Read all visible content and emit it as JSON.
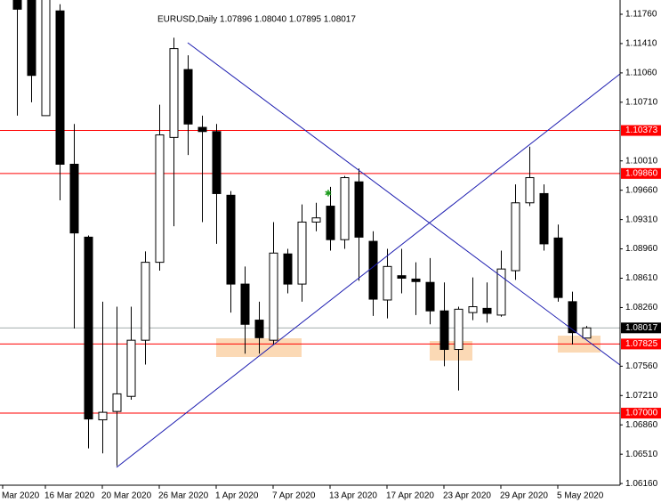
{
  "chart_data": {
    "type": "candlestick",
    "title": "EURUSD,Daily  1.07896 1.08040 1.07895 1.08017",
    "categories": [
      "Mar 2020",
      null,
      null,
      "16 Mar 2020",
      null,
      null,
      null,
      "20 Mar 2020",
      null,
      null,
      null,
      "26 Mar 2020",
      null,
      null,
      null,
      "1 Apr 2020",
      null,
      null,
      null,
      "7 Apr 2020",
      null,
      null,
      null,
      "13 Apr 2020",
      null,
      null,
      null,
      "17 Apr 2020",
      null,
      null,
      null,
      "23 Apr 2020",
      null,
      null,
      null,
      "29 Apr 2020",
      null,
      null,
      null,
      "5 May 2020",
      null,
      null
    ],
    "open": [
      null,
      1.1209,
      1.1195,
      1.1055,
      1.118,
      1.0997,
      1.091,
      1.0692,
      1.0702,
      1.072,
      1.0787,
      1.088,
      1.1029,
      1.111,
      1.1041,
      1.1036,
      1.096,
      1.0854,
      1.0811,
      1.0787,
      1.089,
      1.0854,
      1.0928,
      1.0947,
      1.0907,
      1.0976,
      1.0905,
      1.0835,
      1.0864,
      1.086,
      1.0856,
      1.0822,
      1.0776,
      1.082,
      1.0825,
      1.0817,
      1.087,
      1.0951,
      1.0962,
      1.0909,
      1.0833,
      1.07896
    ],
    "high": [
      null,
      1.1219,
      1.1204,
      1.1204,
      1.1188,
      1.1045,
      1.0912,
      1.0833,
      1.0827,
      1.0827,
      1.0893,
      1.1068,
      1.1148,
      1.1127,
      1.1055,
      1.1045,
      1.0965,
      1.0875,
      1.0833,
      1.0928,
      1.0896,
      1.0949,
      1.0951,
      1.097,
      1.0983,
      1.0992,
      1.0917,
      1.0896,
      1.0896,
      1.088,
      1.0885,
      1.0856,
      1.0827,
      1.0862,
      1.0856,
      1.0894,
      1.0973,
      1.1018,
      1.0973,
      1.0925,
      1.0845,
      1.0804
    ],
    "low": [
      null,
      1.1055,
      1.1071,
      1.1055,
      1.0954,
      1.0801,
      1.0658,
      1.0652,
      1.0637,
      1.0716,
      1.0758,
      1.087,
      1.0923,
      1.1008,
      1.0928,
      1.0902,
      1.082,
      1.0771,
      1.0771,
      1.0782,
      1.0843,
      1.0833,
      1.0917,
      1.0894,
      1.0896,
      1.0858,
      1.0816,
      1.0813,
      1.0843,
      1.0817,
      1.0806,
      1.0756,
      1.0727,
      1.0811,
      1.0808,
      1.0815,
      1.0859,
      1.0947,
      1.0894,
      1.0833,
      1.0782,
      1.07895
    ],
    "close": [
      null,
      1.1182,
      1.1103,
      1.1195,
      1.0997,
      1.0915,
      1.0693,
      1.0701,
      1.0723,
      1.0787,
      1.088,
      1.1032,
      1.1135,
      1.1045,
      1.1036,
      1.0962,
      1.0854,
      1.0806,
      1.079,
      1.0891,
      1.0854,
      1.0928,
      1.0933,
      1.0907,
      1.0981,
      1.091,
      1.0836,
      1.0875,
      1.0861,
      1.0857,
      1.0822,
      1.0776,
      1.0824,
      1.0827,
      1.0819,
      1.0872,
      1.0951,
      1.0981,
      1.0902,
      1.0838,
      1.0796,
      1.08017
    ],
    "up_color": "#ffffff",
    "down_color": "#000000",
    "wick_color": "#000000",
    "ylim": [
      1.0614,
      1.1193
    ],
    "yticks": [
      {
        "value": 1.1176,
        "label": "1.11760"
      },
      {
        "value": 1.1141,
        "label": "1.11410"
      },
      {
        "value": 1.1106,
        "label": "1.11060"
      },
      {
        "value": 1.1071,
        "label": "1.10710"
      },
      {
        "value": 1.1001,
        "label": "1.10010"
      },
      {
        "value": 1.0966,
        "label": "1.09660"
      },
      {
        "value": 1.0931,
        "label": "1.09310"
      },
      {
        "value": 1.0896,
        "label": "1.08960"
      },
      {
        "value": 1.0861,
        "label": "1.08610"
      },
      {
        "value": 1.0826,
        "label": "1.08260"
      },
      {
        "value": 1.0756,
        "label": "1.07560"
      },
      {
        "value": 1.0721,
        "label": "1.07210"
      },
      {
        "value": 1.0686,
        "label": "1.06860"
      },
      {
        "value": 1.0651,
        "label": "1.06510"
      },
      {
        "value": 1.0616,
        "label": "1.06160"
      }
    ],
    "levels": [
      {
        "value": 1.10373,
        "label": "1.10373",
        "color": "#ff0000"
      },
      {
        "value": 1.0986,
        "label": "1.09860",
        "color": "#ff0000"
      },
      {
        "value": 1.07825,
        "label": "1.07825",
        "color": "#ff0000"
      },
      {
        "value": 1.07,
        "label": "1.07000",
        "color": "#ff0000"
      }
    ],
    "last_price": {
      "value": 1.08017,
      "label": "1.08017",
      "line_color": "#a3adad",
      "box_color": "#000000"
    }
  }
}
